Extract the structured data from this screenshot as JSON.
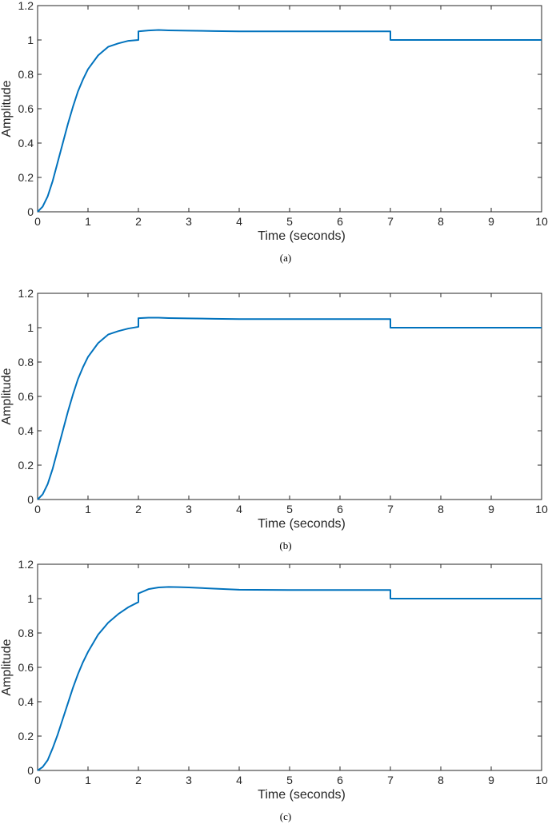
{
  "chart_data": [
    {
      "type": "line",
      "caption": "(a)",
      "xlabel": "Time (seconds)",
      "ylabel": "Amplitude",
      "xlim": [
        0,
        10
      ],
      "ylim": [
        0,
        1.2
      ],
      "xticks": [
        "0",
        "1",
        "2",
        "3",
        "4",
        "5",
        "6",
        "7",
        "8",
        "9",
        "10"
      ],
      "yticks": [
        "0",
        "0.2",
        "0.4",
        "0.6",
        "0.8",
        "1",
        "1.2"
      ],
      "grid": false,
      "legend": "none",
      "line_color": "#0072BD",
      "series": [
        {
          "x": [
            0,
            0.1,
            0.2,
            0.3,
            0.4,
            0.5,
            0.6,
            0.7,
            0.8,
            0.9,
            1.0,
            1.2,
            1.4,
            1.6,
            1.8,
            2.0,
            2.0,
            2.2,
            2.4,
            2.6,
            3.0,
            3.5,
            4.0,
            5.0,
            6.0,
            7.0,
            7.0,
            8.0,
            9.0,
            10.0
          ],
          "y": [
            0,
            0.03,
            0.09,
            0.18,
            0.29,
            0.4,
            0.51,
            0.61,
            0.7,
            0.77,
            0.83,
            0.91,
            0.96,
            0.98,
            0.995,
            1.0,
            1.05,
            1.055,
            1.058,
            1.056,
            1.054,
            1.052,
            1.05,
            1.05,
            1.05,
            1.05,
            1.0,
            1.0,
            1.0,
            1.0
          ]
        }
      ]
    },
    {
      "type": "line",
      "caption": "(b)",
      "xlabel": "Time (seconds)",
      "ylabel": "Amplitude",
      "xlim": [
        0,
        10
      ],
      "ylim": [
        0,
        1.2
      ],
      "xticks": [
        "0",
        "1",
        "2",
        "3",
        "4",
        "5",
        "6",
        "7",
        "8",
        "9",
        "10"
      ],
      "yticks": [
        "0",
        "0.2",
        "0.4",
        "0.6",
        "0.8",
        "1",
        "1.2"
      ],
      "grid": false,
      "legend": "none",
      "line_color": "#0072BD",
      "series": [
        {
          "x": [
            0,
            0.1,
            0.2,
            0.3,
            0.4,
            0.5,
            0.6,
            0.7,
            0.8,
            0.9,
            1.0,
            1.2,
            1.4,
            1.6,
            1.8,
            2.0,
            2.0,
            2.2,
            2.4,
            2.6,
            3.0,
            3.5,
            4.0,
            5.0,
            6.0,
            7.0,
            7.0,
            8.0,
            9.0,
            10.0
          ],
          "y": [
            0,
            0.03,
            0.09,
            0.18,
            0.29,
            0.4,
            0.51,
            0.61,
            0.7,
            0.77,
            0.83,
            0.91,
            0.96,
            0.98,
            0.995,
            1.005,
            1.055,
            1.058,
            1.058,
            1.056,
            1.054,
            1.052,
            1.05,
            1.05,
            1.05,
            1.05,
            1.0,
            1.0,
            1.0,
            1.0
          ]
        }
      ]
    },
    {
      "type": "line",
      "caption": "(c)",
      "xlabel": "Time (seconds)",
      "ylabel": "Amplitude",
      "xlim": [
        0,
        10
      ],
      "ylim": [
        0,
        1.2
      ],
      "xticks": [
        "0",
        "1",
        "2",
        "3",
        "4",
        "5",
        "6",
        "7",
        "8",
        "9",
        "10"
      ],
      "yticks": [
        "0",
        "0.2",
        "0.4",
        "0.6",
        "0.8",
        "1",
        "1.2"
      ],
      "grid": false,
      "legend": "none",
      "line_color": "#0072BD",
      "series": [
        {
          "x": [
            0,
            0.1,
            0.2,
            0.3,
            0.4,
            0.5,
            0.6,
            0.7,
            0.8,
            0.9,
            1.0,
            1.2,
            1.4,
            1.6,
            1.8,
            2.0,
            2.0,
            2.2,
            2.4,
            2.6,
            2.8,
            3.0,
            3.5,
            4.0,
            5.0,
            6.0,
            7.0,
            7.0,
            8.0,
            9.0,
            10.0
          ],
          "y": [
            0,
            0.02,
            0.06,
            0.13,
            0.21,
            0.3,
            0.39,
            0.48,
            0.56,
            0.63,
            0.69,
            0.79,
            0.86,
            0.91,
            0.95,
            0.98,
            1.03,
            1.055,
            1.065,
            1.068,
            1.067,
            1.065,
            1.058,
            1.052,
            1.05,
            1.05,
            1.05,
            1.0,
            1.0,
            1.0,
            1.0
          ]
        }
      ]
    }
  ]
}
